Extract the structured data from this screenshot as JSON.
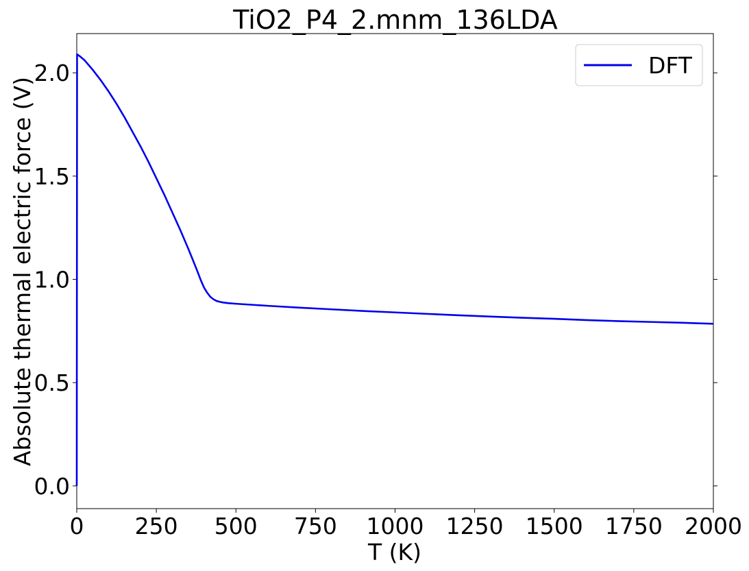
{
  "chart_data": {
    "type": "line",
    "title": "TiO2_P4_2.mnm_136LDA",
    "xlabel": "T (K)",
    "ylabel": "Absolute thermal electric force (V)",
    "xlim": [
      0,
      2000
    ],
    "ylim": [
      -0.11,
      2.19
    ],
    "xticks": [
      0,
      250,
      500,
      750,
      1000,
      1250,
      1500,
      1750,
      2000
    ],
    "xtick_labels": [
      "0",
      "250",
      "500",
      "750",
      "1000",
      "1250",
      "1500",
      "1750",
      "2000"
    ],
    "yticks": [
      0.0,
      0.5,
      1.0,
      1.5,
      2.0
    ],
    "ytick_labels": [
      "0.0",
      "0.5",
      "1.0",
      "1.5",
      "2.0"
    ],
    "grid": false,
    "legend_position": "upper right",
    "series": [
      {
        "name": "DFT",
        "color": "#0000ee",
        "x": [
          0,
          1,
          10,
          25,
          50,
          75,
          100,
          125,
          150,
          175,
          200,
          225,
          250,
          275,
          300,
          325,
          350,
          375,
          390,
          400,
          410,
          420,
          430,
          440,
          450,
          460,
          475,
          500,
          550,
          600,
          700,
          800,
          900,
          1000,
          1100,
          1200,
          1300,
          1400,
          1500,
          1600,
          1700,
          1800,
          1900,
          2000
        ],
        "y": [
          0.0,
          2.09,
          2.08,
          2.06,
          2.015,
          1.965,
          1.91,
          1.85,
          1.785,
          1.715,
          1.645,
          1.57,
          1.49,
          1.41,
          1.325,
          1.24,
          1.15,
          1.055,
          0.995,
          0.96,
          0.935,
          0.915,
          0.903,
          0.895,
          0.891,
          0.888,
          0.885,
          0.882,
          0.877,
          0.872,
          0.863,
          0.855,
          0.847,
          0.84,
          0.833,
          0.826,
          0.82,
          0.814,
          0.809,
          0.803,
          0.798,
          0.794,
          0.79,
          0.785
        ]
      }
    ]
  }
}
